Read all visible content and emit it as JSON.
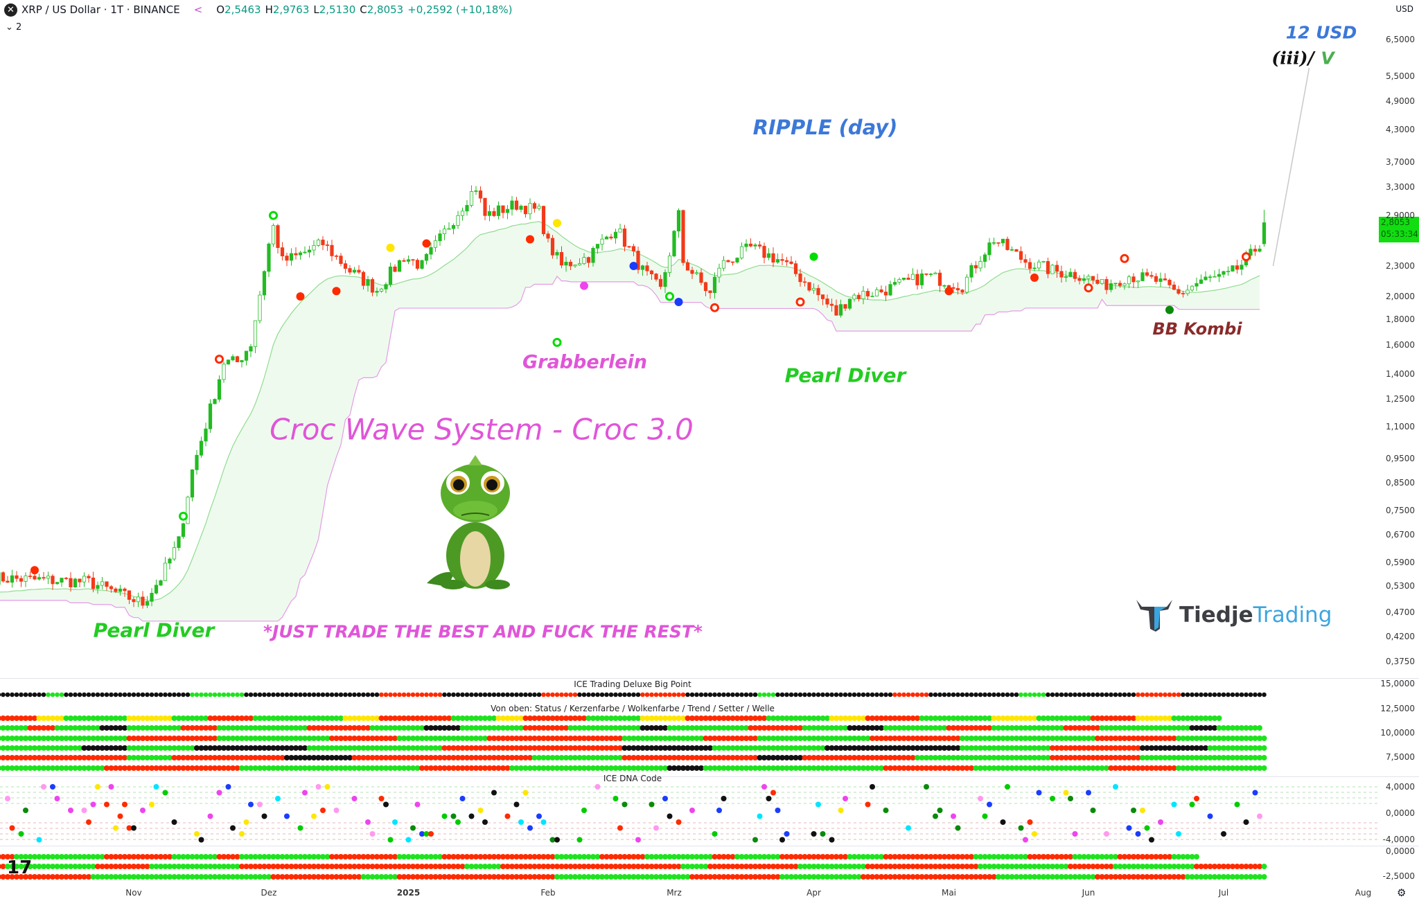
{
  "header": {
    "symbol": "XRP / US Dollar · 1T · BINANCE",
    "o_label": "O",
    "o": "2,5463",
    "h_label": "H",
    "h": "2,9763",
    "l_label": "L",
    "l": "2,5130",
    "c_label": "C",
    "c": "2,8053",
    "change": "+0,2592 (+10,18%)",
    "collapse": "2",
    "icon": "xrp-logo-icon",
    "share_icon": "share-icon"
  },
  "price_axis": {
    "currency": "USD",
    "labels": [
      "6,5000",
      "5,5000",
      "4,9000",
      "4,3000",
      "3,7000",
      "3,3000",
      "2,9000",
      "2,3000",
      "2,0000",
      "1,8000",
      "1,6000",
      "1,4000",
      "1,2500",
      "1,1000",
      "0,9500",
      "0,8500",
      "0,7500",
      "0,6700",
      "0,5900",
      "0,5300",
      "0,4700",
      "0,4200",
      "0,3750"
    ],
    "last_price": "2,8053",
    "countdown": "05:33:34",
    "last_price_color": "#11dd11"
  },
  "time_axis": {
    "labels": [
      "Nov",
      "Dez",
      "2025",
      "Feb",
      "Mrz",
      "Apr",
      "Mai",
      "Jun",
      "Jul",
      "Aug"
    ]
  },
  "annotations": {
    "target": "12 USD",
    "wave_a": "(iii)/",
    "wave_b": "V",
    "title": "RIPPLE (day)",
    "grabberlein": "Grabberlein",
    "pearl_diver_1": "Pearl Diver",
    "pearl_diver_2": "Pearl Diver",
    "bb_kombi": "BB Kombi",
    "system": "Croc Wave System - Croc 3.0",
    "slogan": "*JUST TRADE THE BEST AND FUCK THE REST*"
  },
  "logo": {
    "brand_dark": "Tiedje",
    "brand_light": "Trading"
  },
  "panels": {
    "big_point": {
      "title": "ICE Trading Deluxe Big Point",
      "axis": [
        "15,0000",
        "12,5000",
        "10,0000",
        "7,5000"
      ],
      "row": "k12 g4 k28 g12 k30 r14 k22 r8 k14 r10 k16 g4 k26 r8 k20 g6 k20 r10 k19"
    },
    "status": {
      "title": "Von oben: Status / Kerzenfarbe / Wolkenfarbe / Trend / Setter / Welle",
      "rows": [
        "r10 y6 g14 y10 g8 r10 g20 y8 r16 g10 y6 r14 g12 y10 r18 g14 y8 r12 g16 y10 g12 r10 y8 g11",
        "g8 r6 g10 k6 g12 r8 g20 r14 g12 k8 g14 r10 g16 k6 g18 r12 g10 k8 g14 r10 g16 r8 g20 k6 g10",
        "g30 r20 g25 r15 g20 r30 g18 r12 g25 r20 g30 r18 g20",
        "g20 k10 g15 k25 g30 r40 k20 g25 k30 g20 r20 k15 g13",
        "r30 g10 r25 k15 r40 g20 r30 k10 r25 g30 r20 g28",
        "g25 r30 g40 r20 g35 k8 g40 r20 g30 r15 g20"
      ]
    },
    "dna": {
      "title": "ICE DNA Code",
      "axis": [
        "4,0000",
        "0,0000",
        "-4,0000"
      ],
      "palette": [
        "#00cc00",
        "#0a8a0a",
        "#1a3cff",
        "#ff99ee",
        "#ffe600",
        "#00e5ff",
        "#ff2a00",
        "#111111",
        "#ee44ee"
      ]
    },
    "lower": {
      "axis": [
        "0,0000",
        "-2,5000"
      ],
      "rows": [
        "r5 g20 r15 g10 r5 g20 r15 g10 r25 g10 r10 g15 r5 g10 r15 g8 r20 g12 r10 g10 r12 g6",
        "r3 g20 r12 g20 r50 g8 r40 g6 r20 g15 r25 g20 r10 g18 r15 g20",
        "r22 g40 r20 g8 r35 g30 r20 g18 r30 g22 r20 g18"
      ]
    },
    "colors": {
      "g": "#1ee31e",
      "r": "#ff2a00",
      "y": "#ffe600",
      "k": "#111111"
    }
  },
  "chart_data": {
    "type": "candlestick",
    "title": "RIPPLE (day)",
    "scale": "log",
    "ylim": [
      0.375,
      6.5
    ],
    "grid": false,
    "key_closes": [
      [
        "2024-10-01",
        0.55
      ],
      [
        "2024-10-22",
        0.54
      ],
      [
        "2024-11-03",
        0.49
      ],
      [
        "2024-11-07",
        0.55
      ],
      [
        "2024-11-11",
        0.65
      ],
      [
        "2024-11-14",
        0.9
      ],
      [
        "2024-11-17",
        1.11
      ],
      [
        "2024-11-21",
        1.48
      ],
      [
        "2024-11-24",
        1.48
      ],
      [
        "2024-11-27",
        1.61
      ],
      [
        "2024-12-01",
        2.54
      ],
      [
        "2024-12-02",
        2.75
      ],
      [
        "2024-12-04",
        2.35
      ],
      [
        "2024-12-07",
        2.4
      ],
      [
        "2024-12-13",
        2.55
      ],
      [
        "2024-12-19",
        2.25
      ],
      [
        "2024-12-25",
        2.06
      ],
      [
        "2024-12-31",
        2.4
      ],
      [
        "2025-01-04",
        2.3
      ],
      [
        "2025-01-14",
        3.13
      ],
      [
        "2025-01-16",
        3.3
      ],
      [
        "2025-01-18",
        2.9
      ],
      [
        "2025-01-25",
        3.05
      ],
      [
        "2025-01-30",
        2.95
      ],
      [
        "2025-02-01",
        2.55
      ],
      [
        "2025-02-04",
        2.3
      ],
      [
        "2025-02-10",
        2.4
      ],
      [
        "2025-02-16",
        2.75
      ],
      [
        "2025-02-22",
        2.25
      ],
      [
        "2025-02-26",
        2.06
      ],
      [
        "2025-03-02",
        2.9
      ],
      [
        "2025-03-03",
        2.35
      ],
      [
        "2025-03-09",
        2.02
      ],
      [
        "2025-03-11",
        2.3
      ],
      [
        "2025-03-18",
        2.5
      ],
      [
        "2025-03-25",
        2.35
      ],
      [
        "2025-03-31",
        2.1
      ],
      [
        "2025-04-06",
        1.85
      ],
      [
        "2025-04-09",
        2.0
      ],
      [
        "2025-04-16",
        2.05
      ],
      [
        "2025-04-26",
        2.2
      ],
      [
        "2025-05-04",
        2.1
      ],
      [
        "2025-05-08",
        2.4
      ],
      [
        "2025-05-11",
        2.6
      ],
      [
        "2025-05-18",
        2.35
      ],
      [
        "2025-05-24",
        2.25
      ],
      [
        "2025-05-31",
        2.2
      ],
      [
        "2025-06-04",
        2.1
      ],
      [
        "2025-06-10",
        2.2
      ],
      [
        "2025-06-16",
        2.15
      ],
      [
        "2025-06-21",
        2.02
      ],
      [
        "2025-06-26",
        2.15
      ],
      [
        "2025-07-02",
        2.2
      ],
      [
        "2025-07-06",
        2.35
      ],
      [
        "2025-07-09",
        2.55
      ]
    ],
    "last_candle": {
      "date": "2025-07-10",
      "open": 2.5463,
      "high": 2.9763,
      "low": 2.513,
      "close": 2.8053
    },
    "projection": {
      "from": [
        "2025-07-12",
        2.3
      ],
      "to": [
        "2025-07-20",
        12
      ],
      "label": "12 USD"
    },
    "markers": [
      [
        "2024-10-10",
        0.57,
        "#ff2a00",
        "dot"
      ],
      [
        "2024-11-12",
        0.73,
        "#00dd00",
        "ring"
      ],
      [
        "2024-11-20",
        1.5,
        "#ff2a00",
        "ring"
      ],
      [
        "2024-12-02",
        2.9,
        "#00dd00",
        "ring"
      ],
      [
        "2024-12-08",
        2.0,
        "#ff2a00",
        "dot"
      ],
      [
        "2024-12-16",
        2.05,
        "#ff2a00",
        "dot"
      ],
      [
        "2024-12-28",
        2.5,
        "#ffe600",
        "dot"
      ],
      [
        "2025-01-05",
        2.55,
        "#ff2a00",
        "dot"
      ],
      [
        "2025-01-28",
        2.6,
        "#ff2a00",
        "dot"
      ],
      [
        "2025-02-03",
        2.8,
        "#ffe600",
        "dot"
      ],
      [
        "2025-02-03",
        1.62,
        "#00dd00",
        "ring"
      ],
      [
        "2025-02-09",
        2.1,
        "#ee44ee",
        "dot"
      ],
      [
        "2025-02-20",
        2.3,
        "#1a3cff",
        "dot"
      ],
      [
        "2025-02-28",
        2.0,
        "#00dd00",
        "ring"
      ],
      [
        "2025-03-02",
        1.95,
        "#1a3cff",
        "dot"
      ],
      [
        "2025-03-10",
        1.9,
        "#ff2a00",
        "ring"
      ],
      [
        "2025-04-01",
        2.4,
        "#00dd00",
        "dot"
      ],
      [
        "2025-03-29",
        1.95,
        "#ff2a00",
        "ring"
      ],
      [
        "2025-05-01",
        2.05,
        "#ff2a00",
        "dot"
      ],
      [
        "2025-05-20",
        2.18,
        "#ff2a00",
        "dot"
      ],
      [
        "2025-06-01",
        2.08,
        "#ff2a00",
        "ring"
      ],
      [
        "2025-06-09",
        2.38,
        "#ff2a00",
        "ring"
      ],
      [
        "2025-06-19",
        1.88,
        "#0a8a0a",
        "dot"
      ],
      [
        "2025-07-06",
        2.4,
        "#ff2a00",
        "ring"
      ]
    ]
  }
}
